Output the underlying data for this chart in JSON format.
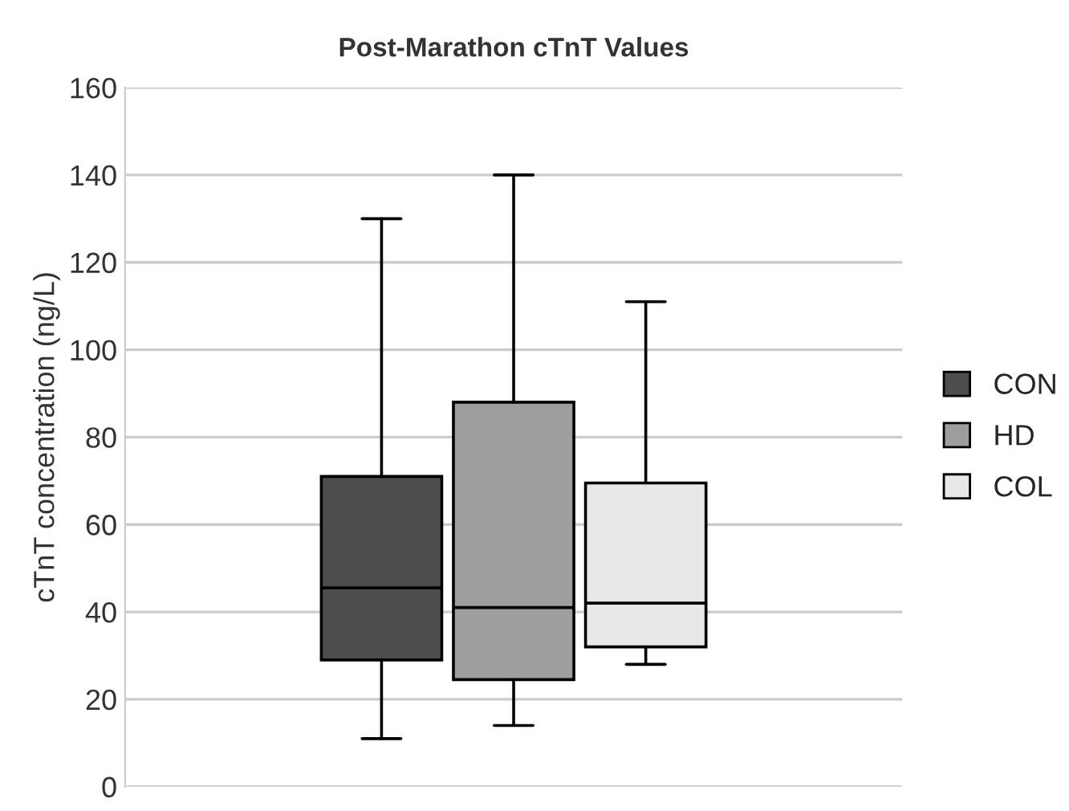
{
  "chart_data": {
    "type": "box",
    "title": "Post-Marathon cTnT Values",
    "ylabel": "cTnT concentration (ng/L)",
    "categories": [
      null
    ],
    "series": [
      {
        "name": "CON",
        "color": "#4d4d4d",
        "boxes": [
          {
            "low": 11,
            "q1": 29,
            "median": 45.5,
            "q3": 71,
            "high": 130
          }
        ]
      },
      {
        "name": "HD",
        "color": "#9e9e9e",
        "boxes": [
          {
            "low": 14,
            "q1": 24.5,
            "median": 41,
            "q3": 88,
            "high": 140
          }
        ]
      },
      {
        "name": "COL",
        "color": "#e8e8e8",
        "boxes": [
          {
            "low": 28,
            "q1": 32,
            "median": 42,
            "q3": 69.5,
            "high": 111
          }
        ]
      }
    ],
    "ylim": [
      0,
      160
    ],
    "yticks": [
      0,
      20,
      40,
      60,
      80,
      100,
      120,
      140,
      160
    ],
    "grid": "y",
    "legend": "right",
    "tick_labels": "y"
  }
}
